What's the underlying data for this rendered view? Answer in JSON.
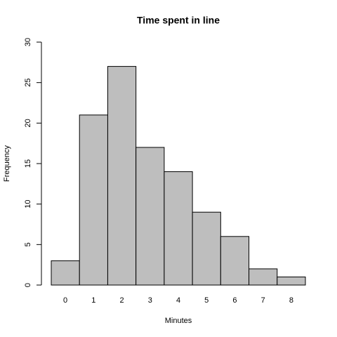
{
  "chart_data": {
    "type": "bar",
    "title": "Time spent in line",
    "x_label": "Minutes",
    "y_label": "Frequency",
    "categories": [
      "0",
      "1",
      "2",
      "3",
      "4",
      "5",
      "6",
      "7",
      "8"
    ],
    "values": [
      3,
      21,
      27,
      17,
      14,
      9,
      6,
      2,
      1
    ],
    "color": "#bebebe",
    "ylim": [
      0,
      30
    ],
    "yticks": [
      0,
      5,
      10,
      15,
      20,
      25,
      30
    ],
    "grid": false
  }
}
